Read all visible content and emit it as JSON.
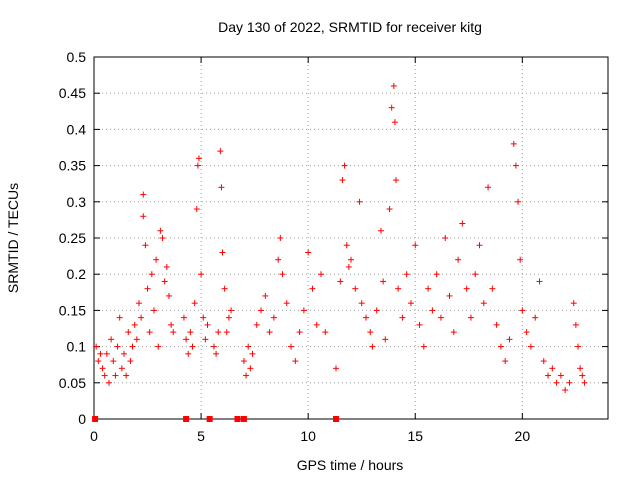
{
  "chart_data": {
    "type": "scatter",
    "title": "Day 130 of 2022, SRMTID for receiver kitg",
    "xlabel": "GPS time / hours",
    "ylabel": "SRMTID / TECUs",
    "xlim": [
      0,
      24
    ],
    "ylim": [
      0,
      0.5
    ],
    "x_ticks": [
      0,
      5,
      10,
      15,
      20
    ],
    "x_tick_labels": [
      "0",
      "5",
      "10",
      "15",
      "20"
    ],
    "y_ticks": [
      0,
      0.05,
      0.1,
      0.15,
      0.2,
      0.25,
      0.3,
      0.35,
      0.4,
      0.45,
      0.5
    ],
    "y_tick_labels": [
      "0",
      "0.05",
      "0.1",
      "0.15",
      "0.2",
      "0.25",
      "0.3",
      "0.35",
      "0.4",
      "0.45",
      "0.5"
    ],
    "grid": true,
    "legend": "none",
    "marker": "+",
    "color": "#ff0000",
    "series": [
      {
        "points": [
          [
            0.1,
            0.1
          ],
          [
            0.2,
            0.08
          ],
          [
            0.3,
            0.09
          ],
          [
            0.4,
            0.07
          ],
          [
            0.5,
            0.06
          ],
          [
            0.6,
            0.09
          ],
          [
            0.7,
            0.05
          ],
          [
            0.8,
            0.11
          ],
          [
            0.9,
            0.08
          ],
          [
            1.0,
            0.06
          ],
          [
            1.1,
            0.1
          ],
          [
            1.2,
            0.14
          ],
          [
            1.3,
            0.07
          ],
          [
            1.4,
            0.09
          ],
          [
            1.5,
            0.06
          ],
          [
            1.6,
            0.12
          ],
          [
            1.7,
            0.08
          ],
          [
            1.8,
            0.1
          ],
          [
            1.9,
            0.13
          ],
          [
            2.0,
            0.11
          ],
          [
            2.1,
            0.16
          ],
          [
            2.2,
            0.14
          ],
          [
            2.3,
            0.31
          ],
          [
            2.3,
            0.28
          ],
          [
            2.4,
            0.24
          ],
          [
            2.5,
            0.18
          ],
          [
            2.6,
            0.12
          ],
          [
            2.7,
            0.2
          ],
          [
            2.8,
            0.15
          ],
          [
            2.9,
            0.22
          ],
          [
            3.0,
            0.1
          ],
          [
            3.1,
            0.26
          ],
          [
            3.2,
            0.25
          ],
          [
            3.3,
            0.19
          ],
          [
            3.4,
            0.21
          ],
          [
            3.5,
            0.17
          ],
          [
            3.6,
            0.13
          ],
          [
            3.7,
            0.12
          ],
          [
            4.2,
            0.14
          ],
          [
            4.3,
            0.11
          ],
          [
            4.4,
            0.09
          ],
          [
            4.5,
            0.12
          ],
          [
            4.6,
            0.1
          ],
          [
            4.7,
            0.16
          ],
          [
            4.8,
            0.29
          ],
          [
            4.85,
            0.35
          ],
          [
            4.9,
            0.36
          ],
          [
            5.0,
            0.2
          ],
          [
            5.1,
            0.14
          ],
          [
            5.2,
            0.11
          ],
          [
            5.3,
            0.13
          ],
          [
            5.6,
            0.1
          ],
          [
            5.7,
            0.09
          ],
          [
            5.8,
            0.12
          ],
          [
            5.9,
            0.37
          ],
          [
            5.95,
            0.32
          ],
          [
            6.0,
            0.23
          ],
          [
            6.1,
            0.18
          ],
          [
            6.2,
            0.12
          ],
          [
            6.3,
            0.14
          ],
          [
            6.4,
            0.15
          ],
          [
            7.0,
            0.08
          ],
          [
            7.1,
            0.06
          ],
          [
            7.2,
            0.1
          ],
          [
            7.3,
            0.07
          ],
          [
            7.4,
            0.09
          ],
          [
            7.6,
            0.13
          ],
          [
            7.8,
            0.15
          ],
          [
            8.0,
            0.17
          ],
          [
            8.2,
            0.12
          ],
          [
            8.4,
            0.14
          ],
          [
            8.6,
            0.22
          ],
          [
            8.7,
            0.25
          ],
          [
            8.8,
            0.2
          ],
          [
            9.0,
            0.16
          ],
          [
            9.2,
            0.1
          ],
          [
            9.4,
            0.08
          ],
          [
            9.6,
            0.12
          ],
          [
            9.8,
            0.15
          ],
          [
            10.0,
            0.23
          ],
          [
            10.2,
            0.18
          ],
          [
            10.4,
            0.13
          ],
          [
            10.6,
            0.2
          ],
          [
            10.8,
            0.12
          ],
          [
            11.3,
            0.07
          ],
          [
            11.5,
            0.19
          ],
          [
            11.6,
            0.33
          ],
          [
            11.7,
            0.35
          ],
          [
            11.8,
            0.24
          ],
          [
            11.9,
            0.21
          ],
          [
            12.0,
            0.22
          ],
          [
            12.2,
            0.18
          ],
          [
            12.4,
            0.3
          ],
          [
            12.5,
            0.16
          ],
          [
            12.7,
            0.14
          ],
          [
            12.9,
            0.12
          ],
          [
            13.0,
            0.1
          ],
          [
            13.2,
            0.15
          ],
          [
            13.4,
            0.26
          ],
          [
            13.5,
            0.19
          ],
          [
            13.6,
            0.11
          ],
          [
            13.8,
            0.29
          ],
          [
            13.9,
            0.43
          ],
          [
            14.0,
            0.46
          ],
          [
            14.05,
            0.41
          ],
          [
            14.1,
            0.33
          ],
          [
            14.2,
            0.18
          ],
          [
            14.4,
            0.14
          ],
          [
            14.6,
            0.2
          ],
          [
            14.8,
            0.16
          ],
          [
            15.0,
            0.24
          ],
          [
            15.2,
            0.13
          ],
          [
            15.4,
            0.1
          ],
          [
            15.6,
            0.18
          ],
          [
            15.8,
            0.15
          ],
          [
            16.0,
            0.2
          ],
          [
            16.2,
            0.14
          ],
          [
            16.4,
            0.25
          ],
          [
            16.6,
            0.17
          ],
          [
            16.8,
            0.12
          ],
          [
            17.0,
            0.22
          ],
          [
            17.2,
            0.27
          ],
          [
            17.4,
            0.18
          ],
          [
            17.6,
            0.14
          ],
          [
            17.8,
            0.2
          ],
          [
            18.0,
            0.24
          ],
          [
            18.2,
            0.16
          ],
          [
            18.4,
            0.32
          ],
          [
            18.6,
            0.18
          ],
          [
            18.8,
            0.13
          ],
          [
            19.0,
            0.1
          ],
          [
            19.2,
            0.08
          ],
          [
            19.4,
            0.11
          ],
          [
            19.6,
            0.38
          ],
          [
            19.7,
            0.35
          ],
          [
            19.8,
            0.3
          ],
          [
            19.9,
            0.22
          ],
          [
            20.0,
            0.15
          ],
          [
            20.2,
            0.12
          ],
          [
            20.4,
            0.1
          ],
          [
            20.6,
            0.14
          ],
          [
            20.8,
            0.19
          ],
          [
            21.0,
            0.08
          ],
          [
            21.2,
            0.06
          ],
          [
            21.4,
            0.07
          ],
          [
            21.6,
            0.05
          ],
          [
            21.8,
            0.06
          ],
          [
            22.0,
            0.04
          ],
          [
            22.2,
            0.05
          ],
          [
            22.4,
            0.16
          ],
          [
            22.5,
            0.13
          ],
          [
            22.6,
            0.1
          ],
          [
            22.7,
            0.07
          ],
          [
            22.8,
            0.06
          ],
          [
            22.9,
            0.05
          ]
        ]
      }
    ],
    "zero_points": [
      0.05,
      4.3,
      5.4,
      6.7,
      7.0,
      11.3
    ]
  }
}
